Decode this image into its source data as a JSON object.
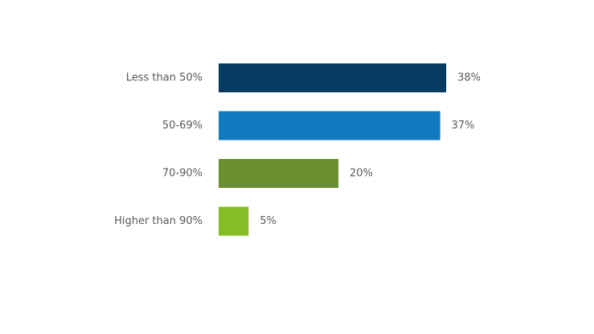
{
  "chart_data": {
    "type": "hbar",
    "categories": [
      "Less than 50%",
      "50-69%",
      "70-90%",
      "Higher than 90%"
    ],
    "values": [
      38,
      37,
      20,
      5
    ],
    "value_labels": [
      "38%",
      "37%",
      "20%",
      "5%"
    ],
    "colors": [
      "#063c62",
      "#117abf",
      "#6a8f31",
      "#86bc25"
    ]
  }
}
